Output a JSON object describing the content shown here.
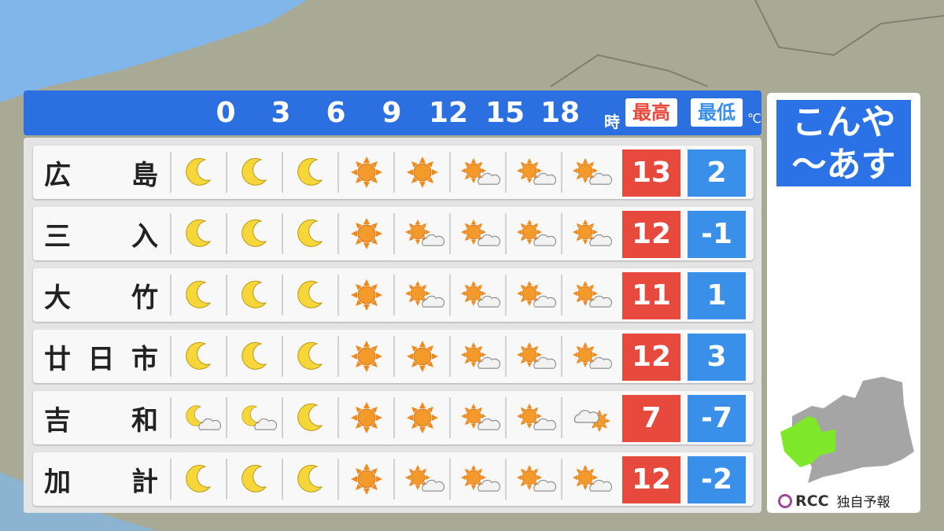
{
  "header": {
    "hours": [
      "0",
      "3",
      "6",
      "9",
      "12",
      "15",
      "18"
    ],
    "hour_unit": "時",
    "max_label": "最高",
    "min_label": "最低",
    "temp_unit": "℃"
  },
  "colors": {
    "header": "#2b6fe0",
    "max": "#e8493d",
    "min": "#3a8fe8",
    "region_highlight": "#7fe82a"
  },
  "rows": [
    {
      "name": [
        "広",
        "島"
      ],
      "icons": [
        "moon",
        "moon",
        "moon",
        "sun",
        "sun",
        "sun-cloud",
        "sun-cloud",
        "sun-cloud"
      ],
      "max": "13",
      "min": "2"
    },
    {
      "name": [
        "三",
        "入"
      ],
      "icons": [
        "moon",
        "moon",
        "moon",
        "sun",
        "sun-cloud",
        "sun-cloud",
        "sun-cloud",
        "sun-cloud"
      ],
      "max": "12",
      "min": "-1"
    },
    {
      "name": [
        "大",
        "竹"
      ],
      "icons": [
        "moon",
        "moon",
        "moon",
        "sun",
        "sun-cloud",
        "sun-cloud",
        "sun-cloud",
        "sun-cloud"
      ],
      "max": "11",
      "min": "1"
    },
    {
      "name": [
        "廿",
        "日",
        "市"
      ],
      "icons": [
        "moon",
        "moon",
        "moon",
        "sun",
        "sun",
        "sun-cloud",
        "sun-cloud",
        "sun-cloud"
      ],
      "max": "12",
      "min": "3"
    },
    {
      "name": [
        "吉",
        "和"
      ],
      "icons": [
        "moon-cloud",
        "moon-cloud",
        "moon",
        "sun",
        "sun",
        "sun-cloud",
        "sun-cloud",
        "cloud-sun"
      ],
      "max": "7",
      "min": "-7"
    },
    {
      "name": [
        "加",
        "計"
      ],
      "icons": [
        "moon",
        "moon",
        "moon",
        "sun",
        "sun-cloud",
        "sun-cloud",
        "sun-cloud",
        "sun-cloud"
      ],
      "max": "12",
      "min": "-2"
    }
  ],
  "side": {
    "title_line1": "こんや",
    "title_line2": "〜あす",
    "logo": "RCC",
    "credit": "独自予報"
  }
}
